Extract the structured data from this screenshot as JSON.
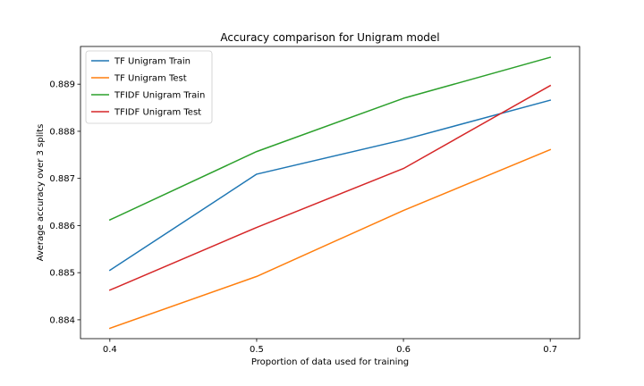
{
  "chart_data": {
    "type": "line",
    "title": "Accuracy comparison for Unigram model",
    "xlabel": "Proportion of data used for training",
    "ylabel": "Average accuracy over 3 splits",
    "x": [
      0.4,
      0.5,
      0.6,
      0.7
    ],
    "x_ticks": [
      "0.4",
      "0.5",
      "0.6",
      "0.7"
    ],
    "y_ticks": [
      "0.884",
      "0.885",
      "0.886",
      "0.887",
      "0.888",
      "0.889"
    ],
    "xlim": [
      0.38,
      0.72
    ],
    "ylim": [
      0.8836,
      0.8898
    ],
    "grid": false,
    "legend_position": "top-left",
    "series": [
      {
        "name": "TF Unigram Train",
        "color": "#1f77b4",
        "values": [
          0.88505,
          0.88709,
          0.88782,
          0.88866
        ]
      },
      {
        "name": "TF Unigram Test",
        "color": "#ff7f0e",
        "values": [
          0.88382,
          0.88492,
          0.88632,
          0.88761
        ]
      },
      {
        "name": "TFIDF Unigram Train",
        "color": "#2ca02c",
        "values": [
          0.88612,
          0.88757,
          0.8887,
          0.88957
        ]
      },
      {
        "name": "TFIDF Unigram Test",
        "color": "#d62728",
        "values": [
          0.88463,
          0.88596,
          0.88721,
          0.88897
        ]
      }
    ]
  }
}
